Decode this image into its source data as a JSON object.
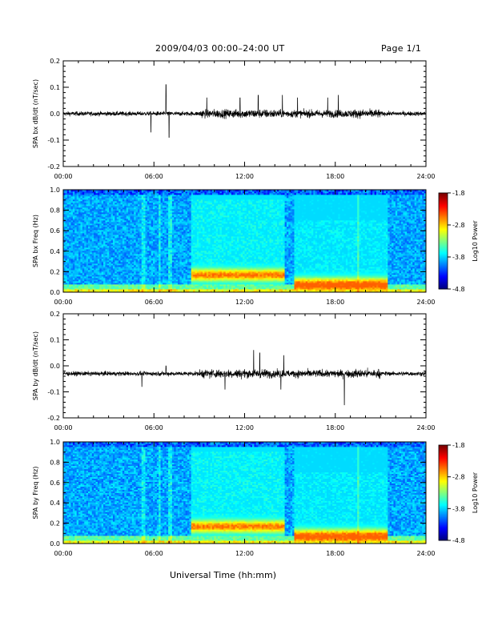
{
  "header": {
    "title": "2009/04/03  00:00–24:00 UT",
    "page": "Page 1/1"
  },
  "x_axis_title": "Universal Time (hh:mm)",
  "chart_data": [
    {
      "type": "line",
      "ylabel": "SPA bx dB/dt (nT/sec)",
      "ylim": [
        -0.2,
        0.2
      ],
      "yticks": [
        "0.2",
        "0.1",
        "0.0",
        "-0.1",
        "-0.2"
      ],
      "xlim": [
        "00:00",
        "24:00"
      ],
      "xticks": [
        "00:00",
        "06:00",
        "12:00",
        "18:00",
        "24:00"
      ],
      "baseline": 0.0,
      "spikes": [
        {
          "x": 5.8,
          "y": 0.12
        },
        {
          "x": 5.8,
          "y": -0.07
        },
        {
          "x": 6.8,
          "y": 0.11
        },
        {
          "x": 7.0,
          "y": -0.09
        },
        {
          "x": 9.5,
          "y": 0.06
        },
        {
          "x": 11.7,
          "y": 0.06
        },
        {
          "x": 12.9,
          "y": 0.07
        },
        {
          "x": 14.5,
          "y": 0.07
        },
        {
          "x": 15.5,
          "y": 0.06
        },
        {
          "x": 17.5,
          "y": 0.06
        },
        {
          "x": 18.2,
          "y": 0.07
        }
      ]
    },
    {
      "type": "heatmap",
      "ylabel": "SPA bx Freq (Hz)",
      "ylim": [
        0.0,
        1.0
      ],
      "yticks": [
        "1.0",
        "0.8",
        "0.6",
        "0.4",
        "0.2",
        "0.0"
      ],
      "xlim": [
        "00:00",
        "24:00"
      ],
      "xticks": [
        "00:00",
        "06:00",
        "12:00",
        "18:00",
        "24:00"
      ],
      "colorbar": {
        "label": "Log10 Power",
        "range": [
          -4.8,
          -1.8
        ],
        "ticks": [
          "-1.8",
          "-2.8",
          "-3.8",
          "-4.8"
        ]
      }
    },
    {
      "type": "line",
      "ylabel": "SPA by dB/dt (nT/sec)",
      "ylim": [
        -0.2,
        0.2
      ],
      "yticks": [
        "0.2",
        "0.1",
        "0.0",
        "-0.1",
        "-0.2"
      ],
      "xlim": [
        "00:00",
        "24:00"
      ],
      "xticks": [
        "00:00",
        "06:00",
        "12:00",
        "18:00",
        "24:00"
      ],
      "baseline": -0.03,
      "spikes": [
        {
          "x": 5.2,
          "y": -0.08
        },
        {
          "x": 6.8,
          "y": 0.0
        },
        {
          "x": 10.7,
          "y": -0.09
        },
        {
          "x": 12.6,
          "y": 0.06
        },
        {
          "x": 13.0,
          "y": 0.05
        },
        {
          "x": 14.4,
          "y": -0.09
        },
        {
          "x": 14.6,
          "y": 0.04
        },
        {
          "x": 18.6,
          "y": -0.15
        }
      ]
    },
    {
      "type": "heatmap",
      "ylabel": "SPA by Freq (Hz)",
      "ylim": [
        0.0,
        1.0
      ],
      "yticks": [
        "1.0",
        "0.8",
        "0.6",
        "0.4",
        "0.2",
        "0.0"
      ],
      "xlim": [
        "00:00",
        "24:00"
      ],
      "xticks": [
        "00:00",
        "06:00",
        "12:00",
        "18:00",
        "24:00"
      ],
      "colorbar": {
        "label": "Log10 Power",
        "range": [
          -4.8,
          -1.8
        ],
        "ticks": [
          "-1.8",
          "-2.8",
          "-3.8",
          "-4.8"
        ]
      }
    }
  ]
}
